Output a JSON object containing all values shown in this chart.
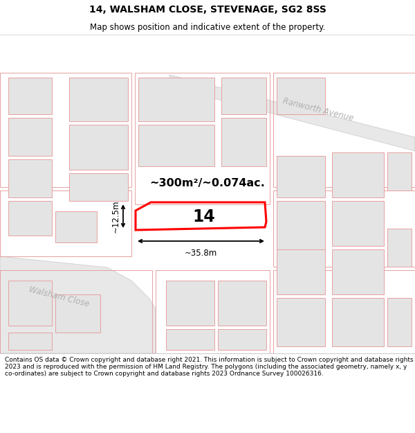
{
  "title": "14, WALSHAM CLOSE, STEVENAGE, SG2 8SS",
  "subtitle": "Map shows position and indicative extent of the property.",
  "footer": "Contains OS data © Crown copyright and database right 2021. This information is subject to Crown copyright and database rights 2023 and is reproduced with the permission of HM Land Registry. The polygons (including the associated geometry, namely x, y co-ordinates) are subject to Crown copyright and database rights 2023 Ordnance Survey 100026316.",
  "map_bg": "#f5f5f5",
  "block_fill": "#e4e4e4",
  "block_outline": "#e8a0a0",
  "road_fill": "#ebebeb",
  "road_label_color": "#b0b0b0",
  "highlight_color": "#ff0000",
  "highlight_label": "14",
  "area_label": "~300m²/~0.074ac.",
  "width_label": "~35.8m",
  "height_label": "~12.5m",
  "street_label_1": "Walsham Close",
  "street_label_2": "Ranworth Avenue",
  "title_fontsize": 10,
  "subtitle_fontsize": 8.5,
  "footer_fontsize": 6.5
}
